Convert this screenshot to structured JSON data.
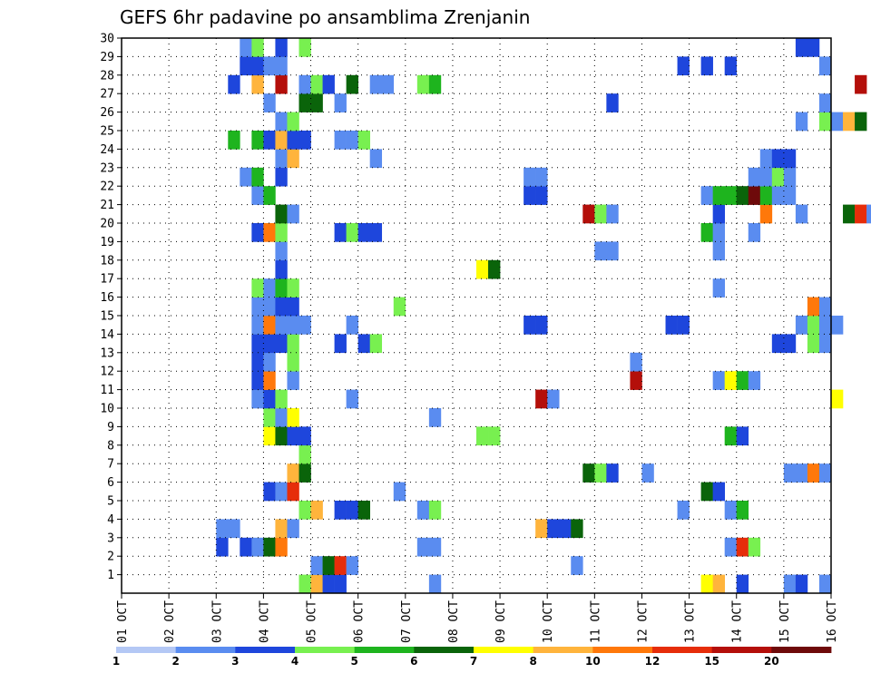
{
  "chart_data": {
    "type": "heatmap",
    "title": "GEFS 6hr padavine po ansamblima Zrenjanin",
    "xlabel": "",
    "ylabel": "",
    "x_ticks": [
      "01 OCT",
      "02 OCT",
      "03 OCT",
      "04 OCT",
      "05 OCT",
      "06 OCT",
      "07 OCT",
      "08 OCT",
      "09 OCT",
      "10 OCT",
      "11 OCT",
      "12 OCT",
      "13 OCT",
      "14 OCT",
      "15 OCT",
      "16 OCT"
    ],
    "x_range_days": [
      0,
      15
    ],
    "x_step_days": 0.25,
    "y_ticks": [
      1,
      2,
      3,
      4,
      5,
      6,
      7,
      8,
      9,
      10,
      11,
      12,
      13,
      14,
      15,
      16,
      17,
      18,
      19,
      20,
      21,
      22,
      23,
      24,
      25,
      26,
      27,
      28,
      29,
      30
    ],
    "y_range": [
      0,
      30
    ],
    "grid": true,
    "legend": {
      "placement": "bottom",
      "labels": [
        "1",
        "2",
        "3",
        "4",
        "5",
        "6",
        "7",
        "8",
        "10",
        "12",
        "15",
        "20"
      ],
      "colors": [
        "#b4c8f5",
        "#5a8cf0",
        "#1e46dc",
        "#78f050",
        "#1eb41e",
        "#0a640a",
        "#ffff00",
        "#ffb43c",
        "#ff780a",
        "#e62d0a",
        "#b40f0a",
        "#6e0a0a"
      ]
    },
    "cells": [
      {
        "m": 0,
        "s": [
          [
            12.25,
            6
          ],
          [
            12.5,
            7
          ],
          [
            13,
            2
          ],
          [
            14,
            1
          ],
          [
            14.25,
            2
          ],
          [
            14.75,
            1
          ],
          [
            3.75,
            3
          ],
          [
            4,
            7
          ],
          [
            4.25,
            2
          ],
          [
            4.5,
            2
          ],
          [
            6.5,
            1
          ]
        ]
      },
      {
        "m": 1,
        "s": [
          [
            4,
            1
          ],
          [
            4.25,
            5
          ],
          [
            4.5,
            9
          ],
          [
            4.75,
            1
          ],
          [
            9.5,
            1
          ]
        ]
      },
      {
        "m": 2,
        "s": [
          [
            2,
            2
          ],
          [
            2.5,
            2
          ],
          [
            2.75,
            1
          ],
          [
            3,
            5
          ],
          [
            3.25,
            8
          ],
          [
            6.25,
            1
          ],
          [
            6.5,
            1
          ],
          [
            12.75,
            1
          ],
          [
            13,
            9
          ],
          [
            13.25,
            3
          ]
        ]
      },
      {
        "m": 3,
        "s": [
          [
            2,
            1
          ],
          [
            2.25,
            1
          ],
          [
            3.25,
            7
          ],
          [
            3.5,
            1
          ],
          [
            8.75,
            7
          ],
          [
            9,
            2
          ],
          [
            9.25,
            2
          ],
          [
            9.5,
            5
          ]
        ]
      },
      {
        "m": 4,
        "s": [
          [
            3.75,
            3
          ],
          [
            4,
            7
          ],
          [
            4.5,
            2
          ],
          [
            4.75,
            2
          ],
          [
            5,
            5
          ],
          [
            6.25,
            1
          ],
          [
            6.5,
            3
          ],
          [
            11.75,
            1
          ],
          [
            12.75,
            1
          ],
          [
            13,
            4
          ]
        ]
      },
      {
        "m": 5,
        "s": [
          [
            3,
            2
          ],
          [
            3.25,
            1
          ],
          [
            3.5,
            9
          ],
          [
            5.75,
            1
          ],
          [
            12.25,
            5
          ],
          [
            12.5,
            2
          ]
        ]
      },
      {
        "m": 6,
        "s": [
          [
            3.5,
            7
          ],
          [
            3.75,
            5
          ],
          [
            9.75,
            5
          ],
          [
            10,
            3
          ],
          [
            10.25,
            2
          ],
          [
            11,
            1
          ],
          [
            14,
            1
          ],
          [
            14.25,
            1
          ],
          [
            14.5,
            8
          ],
          [
            14.75,
            1
          ]
        ]
      },
      {
        "m": 7,
        "s": [
          [
            3.75,
            3
          ]
        ]
      },
      {
        "m": 8,
        "s": [
          [
            3,
            6
          ],
          [
            3.25,
            5
          ],
          [
            3.5,
            2
          ],
          [
            3.75,
            2
          ],
          [
            7.5,
            3
          ],
          [
            7.75,
            3
          ],
          [
            12.75,
            4
          ],
          [
            13,
            2
          ]
        ]
      },
      {
        "m": 9,
        "s": [
          [
            3,
            3
          ],
          [
            3.25,
            1
          ],
          [
            3.5,
            6
          ],
          [
            6.5,
            1
          ]
        ]
      },
      {
        "m": 10,
        "s": [
          [
            2.75,
            1
          ],
          [
            3,
            2
          ],
          [
            3.25,
            3
          ],
          [
            4.75,
            1
          ],
          [
            8.75,
            10
          ],
          [
            9,
            1
          ],
          [
            15,
            6
          ]
        ]
      },
      {
        "m": 11,
        "s": [
          [
            2.75,
            2
          ],
          [
            3,
            8
          ],
          [
            3.5,
            1
          ],
          [
            10.75,
            10
          ],
          [
            12.5,
            1
          ],
          [
            12.75,
            6
          ],
          [
            13,
            4
          ],
          [
            13.25,
            1
          ]
        ]
      },
      {
        "m": 12,
        "s": [
          [
            2.75,
            2
          ],
          [
            3,
            1
          ],
          [
            3.5,
            3
          ],
          [
            10.75,
            1
          ]
        ]
      },
      {
        "m": 13,
        "s": [
          [
            2.75,
            2
          ],
          [
            3,
            2
          ],
          [
            3.25,
            2
          ],
          [
            3.5,
            3
          ],
          [
            4.5,
            2
          ],
          [
            5,
            2
          ],
          [
            5.25,
            3
          ],
          [
            13.75,
            2
          ],
          [
            14,
            2
          ],
          [
            14.5,
            3
          ],
          [
            14.75,
            1
          ]
        ]
      },
      {
        "m": 14,
        "s": [
          [
            2.75,
            1
          ],
          [
            3,
            8
          ],
          [
            3.25,
            1
          ],
          [
            3.5,
            1
          ],
          [
            3.75,
            1
          ],
          [
            4.75,
            1
          ],
          [
            8.5,
            2
          ],
          [
            8.75,
            2
          ],
          [
            11.5,
            2
          ],
          [
            11.75,
            2
          ],
          [
            14.25,
            1
          ],
          [
            14.5,
            3
          ],
          [
            14.75,
            1
          ],
          [
            15,
            1
          ]
        ]
      },
      {
        "m": 15,
        "s": [
          [
            2.75,
            1
          ],
          [
            3,
            1
          ],
          [
            3.25,
            2
          ],
          [
            3.5,
            2
          ],
          [
            5.75,
            3
          ],
          [
            14.5,
            8
          ],
          [
            14.75,
            1
          ]
        ]
      },
      {
        "m": 16,
        "s": [
          [
            2.75,
            3
          ],
          [
            3,
            1
          ],
          [
            3.25,
            4
          ],
          [
            3.5,
            3
          ],
          [
            12.5,
            1
          ]
        ]
      },
      {
        "m": 17,
        "s": [
          [
            3.25,
            2
          ],
          [
            7.5,
            6
          ],
          [
            7.75,
            5
          ]
        ]
      },
      {
        "m": 18,
        "s": [
          [
            3.25,
            1
          ],
          [
            10,
            1
          ],
          [
            10.25,
            1
          ],
          [
            12.5,
            1
          ]
        ]
      },
      {
        "m": 19,
        "s": [
          [
            2.75,
            2
          ],
          [
            3,
            8
          ],
          [
            3.25,
            3
          ],
          [
            4.5,
            2
          ],
          [
            4.75,
            3
          ],
          [
            5,
            2
          ],
          [
            5.25,
            2
          ],
          [
            12.25,
            4
          ],
          [
            12.5,
            1
          ],
          [
            13.25,
            1
          ]
        ]
      },
      {
        "m": 20,
        "s": [
          [
            3.25,
            5
          ],
          [
            3.5,
            1
          ],
          [
            9.75,
            10
          ],
          [
            10,
            3
          ],
          [
            10.25,
            1
          ],
          [
            12.5,
            2
          ],
          [
            13.5,
            8
          ],
          [
            14.25,
            1
          ],
          [
            15.25,
            5
          ],
          [
            15.5,
            9
          ],
          [
            15.75,
            1
          ]
        ]
      },
      {
        "m": 21,
        "s": [
          [
            2.75,
            1
          ],
          [
            3,
            4
          ],
          [
            8.5,
            2
          ],
          [
            8.75,
            2
          ],
          [
            12.25,
            1
          ],
          [
            12.5,
            4
          ],
          [
            12.75,
            4
          ],
          [
            13,
            5
          ],
          [
            13.25,
            11
          ],
          [
            13.5,
            4
          ],
          [
            13.75,
            1
          ],
          [
            14,
            1
          ]
        ]
      },
      {
        "m": 22,
        "s": [
          [
            2.5,
            1
          ],
          [
            2.75,
            4
          ],
          [
            3.25,
            2
          ],
          [
            8.5,
            1
          ],
          [
            8.75,
            1
          ],
          [
            13.25,
            1
          ],
          [
            13.5,
            1
          ],
          [
            13.75,
            3
          ],
          [
            14,
            1
          ]
        ]
      },
      {
        "m": 23,
        "s": [
          [
            3.25,
            1
          ],
          [
            3.5,
            7
          ],
          [
            5.25,
            1
          ],
          [
            13.5,
            1
          ],
          [
            13.75,
            2
          ],
          [
            14,
            2
          ]
        ]
      },
      {
        "m": 24,
        "s": [
          [
            2.25,
            4
          ],
          [
            2.75,
            4
          ],
          [
            3,
            2
          ],
          [
            3.25,
            7
          ],
          [
            3.5,
            2
          ],
          [
            3.75,
            2
          ],
          [
            4.5,
            1
          ],
          [
            4.75,
            1
          ],
          [
            5,
            3
          ]
        ]
      },
      {
        "m": 25,
        "s": [
          [
            3.25,
            1
          ],
          [
            3.5,
            3
          ],
          [
            14.25,
            1
          ],
          [
            14.75,
            3
          ],
          [
            15,
            1
          ],
          [
            15.25,
            7
          ],
          [
            15.5,
            5
          ]
        ]
      },
      {
        "m": 26,
        "s": [
          [
            3,
            1
          ],
          [
            3.75,
            5
          ],
          [
            4,
            5
          ],
          [
            4.5,
            1
          ],
          [
            10.25,
            2
          ],
          [
            14.75,
            1
          ]
        ]
      },
      {
        "m": 27,
        "s": [
          [
            2.25,
            2
          ],
          [
            2.75,
            7
          ],
          [
            3.25,
            10
          ],
          [
            3.75,
            1
          ],
          [
            4,
            3
          ],
          [
            4.25,
            2
          ],
          [
            4.75,
            5
          ],
          [
            5.25,
            1
          ],
          [
            5.5,
            1
          ],
          [
            6.25,
            3
          ],
          [
            6.5,
            4
          ],
          [
            15.5,
            10
          ]
        ]
      },
      {
        "m": 28,
        "s": [
          [
            2.5,
            2
          ],
          [
            2.75,
            2
          ],
          [
            3,
            1
          ],
          [
            3.25,
            1
          ],
          [
            11.75,
            2
          ],
          [
            12.25,
            2
          ],
          [
            12.75,
            2
          ],
          [
            14.75,
            1
          ]
        ]
      },
      {
        "m": 29,
        "s": [
          [
            2.5,
            1
          ],
          [
            2.75,
            3
          ],
          [
            3.25,
            2
          ],
          [
            3.75,
            3
          ],
          [
            14.25,
            2
          ],
          [
            14.5,
            2
          ]
        ]
      }
    ]
  }
}
